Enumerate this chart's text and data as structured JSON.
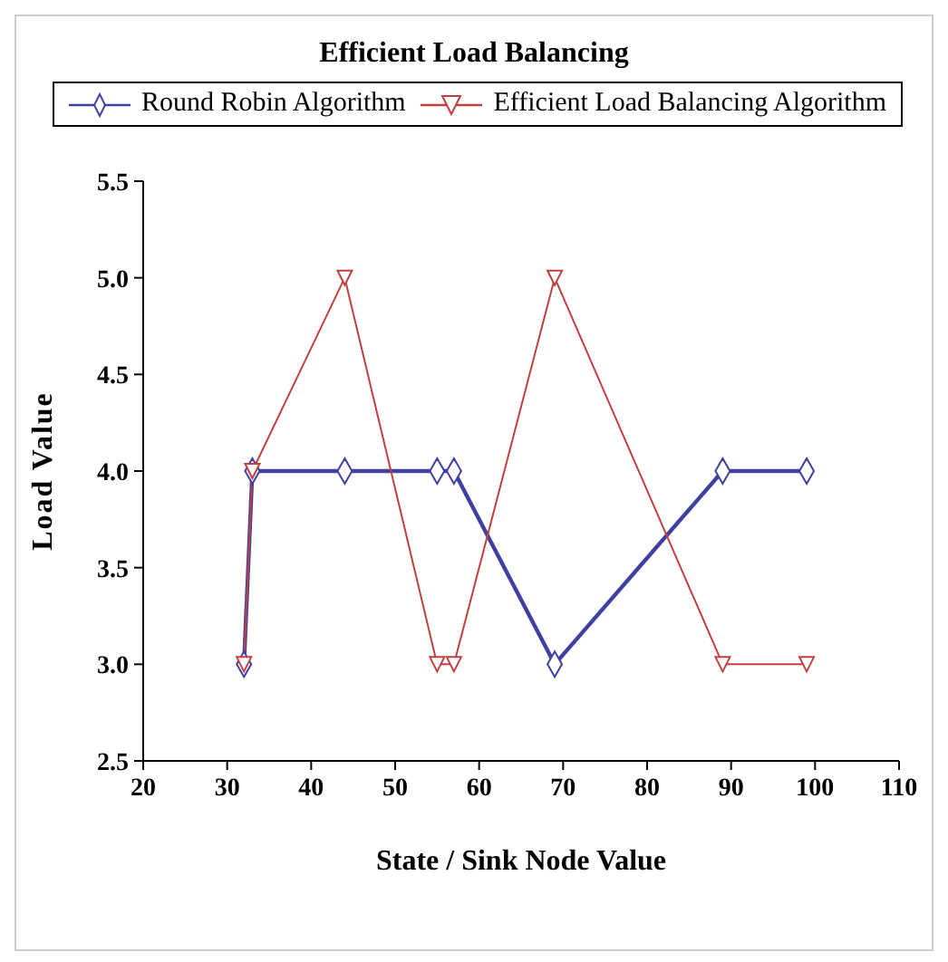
{
  "chart_data": {
    "type": "line",
    "title": "Efficient Load Balancing",
    "xlabel": "State / Sink Node Value",
    "ylabel": "Load Value",
    "xlim": [
      20,
      110
    ],
    "xticks": [
      20,
      30,
      40,
      50,
      60,
      70,
      80,
      90,
      100,
      110
    ],
    "ylim": [
      2.5,
      5.5
    ],
    "yticks": [
      2.5,
      {
        "value": 3,
        "label": "3.0"
      },
      3.5,
      {
        "value": 4,
        "label": "4.0"
      },
      4.5,
      {
        "value": 5,
        "label": "5.0"
      },
      5.5
    ],
    "grid": false,
    "legend": "top",
    "line_style": "solid",
    "series": [
      {
        "name": "Round Robin Algorithm",
        "color": "#4040a0",
        "marker": "diamond",
        "x": [
          32,
          33,
          44,
          55,
          57,
          69,
          89,
          99
        ],
        "values": [
          3,
          4,
          4,
          4,
          4,
          3,
          4,
          4
        ]
      },
      {
        "name": "Efficient Load Balancing Algorithm",
        "color": "#c04040",
        "marker": "triangle",
        "x": [
          32,
          33,
          44,
          55,
          57,
          69,
          89,
          99
        ],
        "values": [
          3,
          4,
          5,
          3,
          3,
          5,
          3,
          3
        ]
      }
    ]
  }
}
